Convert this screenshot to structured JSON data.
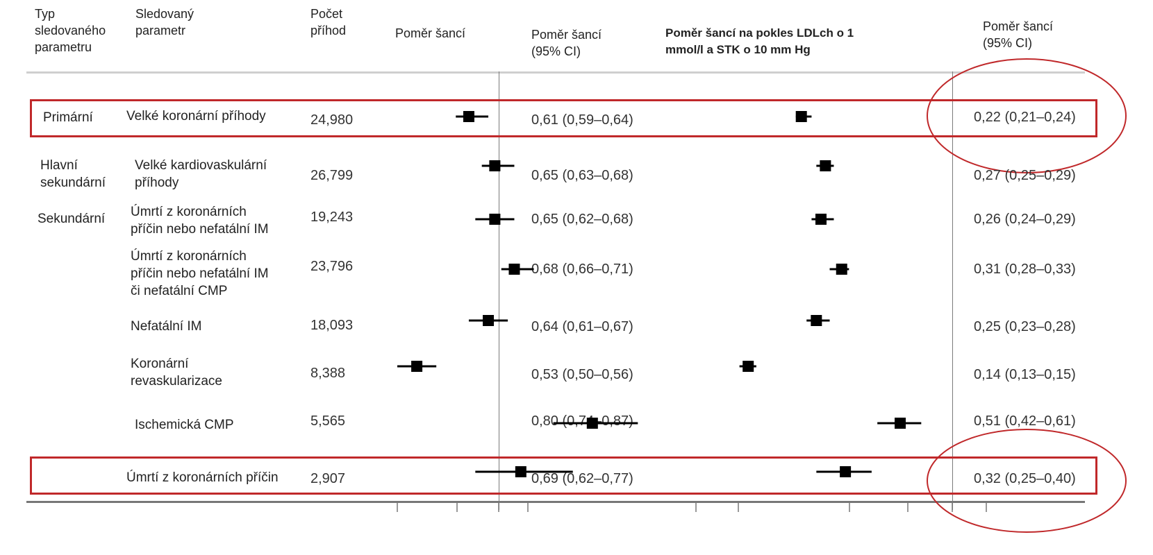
{
  "headers": {
    "type": "Typ\nsledovaného\nparametru",
    "param": "Sledovaný\nparametr",
    "count": "Počet\npříhod",
    "or_plot": "Poměr šancí",
    "or_ci": "Poměr šancí\n(95% CI)",
    "adj_plot": "Poměr šancí na pokles LDLch o 1\nmmol/l a STK o 10 mm Hg",
    "adj_ci": "Poměr šancí\n(95% CI)"
  },
  "rows": [
    {
      "type": "Primární",
      "param": "Velké koronární příhody",
      "count": "24,980",
      "or_ci": "0,61 (0,59–0,64)",
      "adj_ci": "0,22 (0,21–0,24)"
    },
    {
      "type": "Hlavní\nsekundární",
      "param": "Velké kardiovaskulární\npříhody",
      "count": "26,799",
      "or_ci": "0,65 (0,63–0,68)",
      "adj_ci": "0,27 (0,25–0,29)"
    },
    {
      "type": "Sekundární",
      "param": "Úmrtí z koronárních\npříčin nebo nefatální IM",
      "count": "19,243",
      "or_ci": "0,65 (0,62–0,68)",
      "adj_ci": "0,26 (0,24–0,29)"
    },
    {
      "type": "",
      "param": "Úmrtí z koronárních\npříčin nebo nefatální IM\nči nefatální CMP",
      "count": "23,796",
      "or_ci": "0,68 (0,66–0,71)",
      "adj_ci": "0,31 (0,28–0,33)"
    },
    {
      "type": "",
      "param": "Nefatální IM",
      "count": "18,093",
      "or_ci": "0,64 (0,61–0,67)",
      "adj_ci": "0,25 (0,23–0,28)"
    },
    {
      "type": "",
      "param": "Koronární\nrevaskularizace",
      "count": "8,388",
      "or_ci": "0,53 (0,50–0,56)",
      "adj_ci": "0,14 (0,13–0,15)"
    },
    {
      "type": "",
      "param": "Ischemická CMP",
      "count": "5,565",
      "or_ci": "0,80 (0,74–0,87)",
      "adj_ci": "0,51 (0,42–0,61)"
    },
    {
      "type": "",
      "param": "Úmrtí z koronárních příčin",
      "count": "2,907",
      "or_ci": "0,69 (0,62–0,77)",
      "adj_ci": "0,32 (0,25–0,40)"
    }
  ],
  "chart_data": [
    {
      "type": "forest",
      "title": "Poměr šancí",
      "categories": [
        "Velké koronární příhody",
        "Velké kardiovaskulární příhody",
        "Úmrtí z koronárních příčin nebo nefatální IM",
        "Úmrtí z koronárních příčin nebo nefatální IM či nefatální CMP",
        "Nefatální IM",
        "Koronární revaskularizace",
        "Ischemická CMP",
        "Úmrtí z koronárních příčin"
      ],
      "estimate": [
        0.61,
        0.65,
        0.65,
        0.68,
        0.64,
        0.53,
        0.8,
        0.69
      ],
      "lower": [
        0.59,
        0.63,
        0.62,
        0.66,
        0.61,
        0.5,
        0.74,
        0.62
      ],
      "upper": [
        0.64,
        0.68,
        0.68,
        0.71,
        0.67,
        0.56,
        0.87,
        0.77
      ],
      "xlim": [
        0.5,
        1.0
      ]
    },
    {
      "type": "forest",
      "title": "Poměr šancí na pokles LDLch o 1 mmol/l a STK o 10 mm Hg",
      "categories": [
        "Velké koronární příhody",
        "Velké kardiovaskulární příhody",
        "Úmrtí z koronárních příčin nebo nefatální IM",
        "Úmrtí z koronárních příčin nebo nefatální IM či nefatální CMP",
        "Nefatální IM",
        "Koronární revaskularizace",
        "Ischemická CMP",
        "Úmrtí z koronárních příčin"
      ],
      "estimate": [
        0.22,
        0.27,
        0.26,
        0.31,
        0.25,
        0.14,
        0.51,
        0.32
      ],
      "lower": [
        0.21,
        0.25,
        0.24,
        0.28,
        0.23,
        0.13,
        0.42,
        0.25
      ],
      "upper": [
        0.24,
        0.29,
        0.29,
        0.33,
        0.28,
        0.15,
        0.61,
        0.4
      ],
      "xlim": [
        0.125,
        1.0
      ],
      "scale": "log"
    }
  ],
  "colors": {
    "highlight": "#c0282a",
    "marker": "#000000",
    "text": "#222222"
  }
}
